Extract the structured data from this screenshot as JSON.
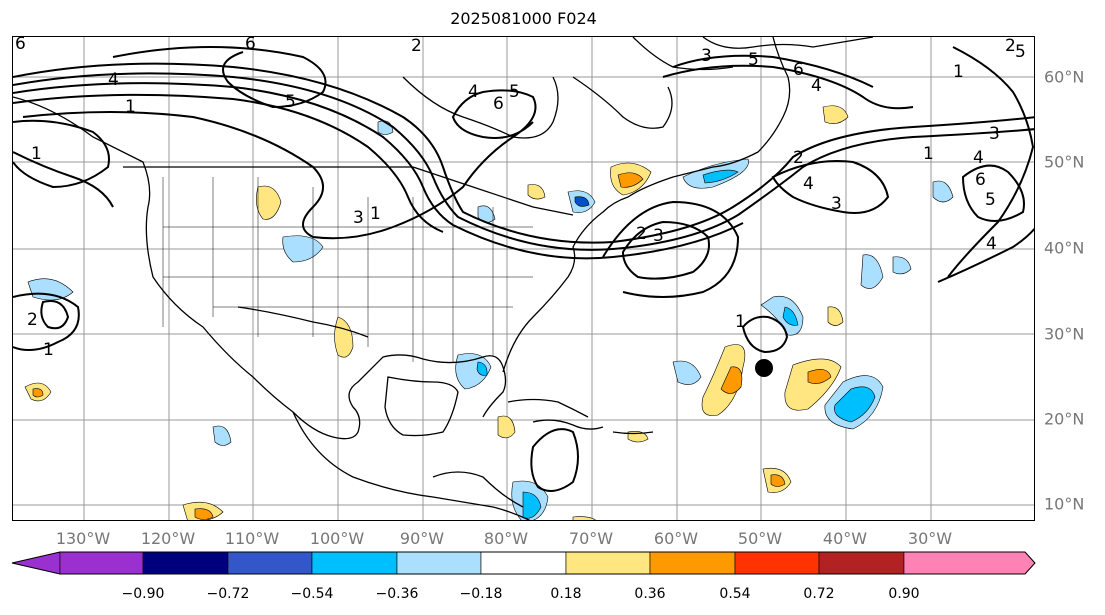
{
  "title": "2025081000 F024",
  "longitude_labels": [
    "130°W",
    "120°W",
    "110°W",
    "100°W",
    "90°W",
    "80°W",
    "70°W",
    "60°W",
    "50°W",
    "40°W",
    "30°W"
  ],
  "latitude_labels": [
    "60°N",
    "50°N",
    "40°N",
    "30°N",
    "20°N",
    "10°N"
  ],
  "colorbar": {
    "tick_labels": [
      "−0.90",
      "−0.72",
      "−0.54",
      "−0.36",
      "−0.18",
      "0.18",
      "0.36",
      "0.54",
      "0.72",
      "0.90"
    ],
    "colors": [
      "#9b30d0",
      "#00007f",
      "#3357c9",
      "#00bfff",
      "#aadfff",
      "#ffffff",
      "#ffe680",
      "#ff9900",
      "#ff3300",
      "#b22222",
      "#ff82b4"
    ]
  },
  "contour_labels": [
    "1",
    "2",
    "3",
    "4",
    "5",
    "6"
  ],
  "marker": {
    "description": "black dot",
    "lon": "52°W",
    "lat": "26°N"
  }
}
